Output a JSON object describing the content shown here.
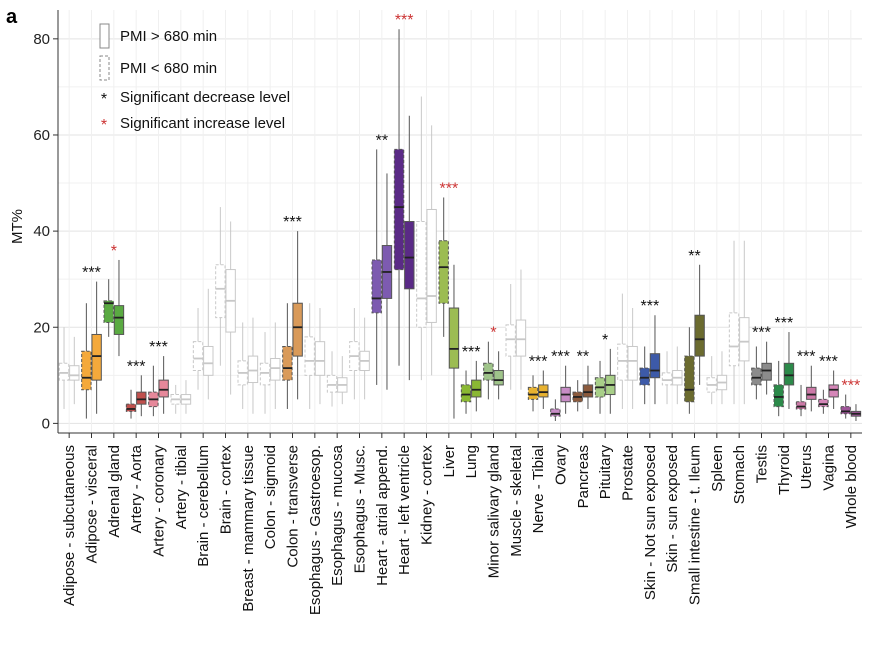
{
  "panel_label": "a",
  "chart_data": {
    "type": "box",
    "ylabel": "MT%",
    "ylim": [
      -2,
      86
    ],
    "yticks": [
      0,
      20,
      40,
      60,
      80
    ],
    "grid": true,
    "legend_position": "top-left",
    "legend": [
      {
        "label": "PMI > 680 min",
        "style": "solid"
      },
      {
        "label": "PMI < 680 min",
        "style": "dashed"
      },
      {
        "label": "Significant decrease level",
        "marker": "*",
        "color": "#111111"
      },
      {
        "label": "Significant increase level",
        "marker": "*",
        "color": "#cc3333"
      }
    ],
    "categories": [
      {
        "name": "Adipose - subcutaneous",
        "color": null,
        "sig": "",
        "sig_color": "",
        "long": {
          "q1": 9,
          "med": 10,
          "q3": 12,
          "lo": 4,
          "hi": 18
        },
        "short": {
          "q1": 9,
          "med": 10.5,
          "q3": 12.5,
          "lo": 3,
          "hi": 20
        }
      },
      {
        "name": "Adipose - visceral",
        "color": "#f4a93b",
        "sig": "***",
        "sig_color": "#111111",
        "long": {
          "q1": 9,
          "med": 14,
          "q3": 18.5,
          "lo": 2,
          "hi": 29.5
        },
        "short": {
          "q1": 7,
          "med": 9.5,
          "q3": 15,
          "lo": 1,
          "hi": 25
        }
      },
      {
        "name": "Adrenal gland",
        "color": "#5aaa42",
        "sig": "*",
        "sig_color": "#cc3333",
        "long": {
          "q1": 18.5,
          "med": 22,
          "q3": 24.5,
          "lo": 14,
          "hi": 34
        },
        "short": {
          "q1": 21,
          "med": 25,
          "q3": 25.5,
          "lo": 18,
          "hi": 30
        }
      },
      {
        "name": "Artery - Aorta",
        "color": "#c0504d",
        "sig": "***",
        "sig_color": "#111111",
        "long": {
          "q1": 4,
          "med": 5,
          "q3": 6.5,
          "lo": 1.5,
          "hi": 10
        },
        "short": {
          "q1": 2.5,
          "med": 3,
          "q3": 4,
          "lo": 1,
          "hi": 7
        }
      },
      {
        "name": "Artery - coronary",
        "color": "#e6889a",
        "sig": "***",
        "sig_color": "#111111",
        "long": {
          "q1": 5.5,
          "med": 7,
          "q3": 9,
          "lo": 2,
          "hi": 14
        },
        "short": {
          "q1": 3.5,
          "med": 5,
          "q3": 6.5,
          "lo": 1.5,
          "hi": 12
        }
      },
      {
        "name": "Artery - tibial",
        "color": null,
        "sig": "",
        "sig_color": "",
        "long": {
          "q1": 4,
          "med": 5,
          "q3": 6,
          "lo": 2,
          "hi": 9
        },
        "short": {
          "q1": 4,
          "med": 5,
          "q3": 6,
          "lo": 2,
          "hi": 8
        }
      },
      {
        "name": "Brain - cerebellum",
        "color": null,
        "sig": "",
        "sig_color": "",
        "long": {
          "q1": 10,
          "med": 12.5,
          "q3": 16,
          "lo": 5,
          "hi": 28
        },
        "short": {
          "q1": 11,
          "med": 13.5,
          "q3": 17,
          "lo": 7,
          "hi": 24
        }
      },
      {
        "name": "Brain - cortex",
        "color": null,
        "sig": "",
        "sig_color": "",
        "long": {
          "q1": 19,
          "med": 25.5,
          "q3": 32,
          "lo": 6,
          "hi": 42
        },
        "short": {
          "q1": 22,
          "med": 28,
          "q3": 33,
          "lo": 12,
          "hi": 45
        }
      },
      {
        "name": "Breast - mammary tissue",
        "color": null,
        "sig": "",
        "sig_color": "",
        "long": {
          "q1": 8.5,
          "med": 11,
          "q3": 14,
          "lo": 2,
          "hi": 22
        },
        "short": {
          "q1": 8,
          "med": 10.5,
          "q3": 13,
          "lo": 3,
          "hi": 21
        }
      },
      {
        "name": "Colon - sigmoid",
        "color": null,
        "sig": "",
        "sig_color": "",
        "long": {
          "q1": 9,
          "med": 11.5,
          "q3": 13.5,
          "lo": 3,
          "hi": 21
        },
        "short": {
          "q1": 8,
          "med": 10.5,
          "q3": 12.5,
          "lo": 2,
          "hi": 19
        }
      },
      {
        "name": "Colon - transverse",
        "color": "#d99a59",
        "sig": "***",
        "sig_color": "#111111",
        "long": {
          "q1": 14,
          "med": 20,
          "q3": 25,
          "lo": 5,
          "hi": 40
        },
        "short": {
          "q1": 9,
          "med": 11.5,
          "q3": 16,
          "lo": 3,
          "hi": 25
        }
      },
      {
        "name": "Esophagus - Gastroesop.",
        "color": null,
        "sig": "",
        "sig_color": "",
        "long": {
          "q1": 10,
          "med": 13,
          "q3": 17,
          "lo": 4,
          "hi": 24
        },
        "short": {
          "q1": 10,
          "med": 13,
          "q3": 18,
          "lo": 3,
          "hi": 25
        }
      },
      {
        "name": "Esophagus - mucosa",
        "color": null,
        "sig": "",
        "sig_color": "",
        "long": {
          "q1": 6.5,
          "med": 8,
          "q3": 9.5,
          "lo": 4,
          "hi": 14
        },
        "short": {
          "q1": 6.5,
          "med": 8,
          "q3": 10,
          "lo": 3.5,
          "hi": 15
        }
      },
      {
        "name": "Esophagus - Musc.",
        "color": null,
        "sig": "",
        "sig_color": "",
        "long": {
          "q1": 11,
          "med": 13,
          "q3": 15,
          "lo": 5,
          "hi": 22
        },
        "short": {
          "q1": 11,
          "med": 14,
          "q3": 17,
          "lo": 5,
          "hi": 24
        }
      },
      {
        "name": "Heart - atrial append.",
        "color": "#7d5bb0",
        "sig": "**",
        "sig_color": "#111111",
        "long": {
          "q1": 26,
          "med": 31.5,
          "q3": 37,
          "lo": 7,
          "hi": 52
        },
        "short": {
          "q1": 23,
          "med": 26,
          "q3": 34,
          "lo": 8,
          "hi": 57
        }
      },
      {
        "name": "Heart - left ventricle",
        "color": "#5a2a86",
        "sig": "***",
        "sig_color": "#cc3333",
        "long": {
          "q1": 28,
          "med": 34.5,
          "q3": 42,
          "lo": 9,
          "hi": 64
        },
        "short": {
          "q1": 32,
          "med": 45,
          "q3": 57,
          "lo": 12,
          "hi": 82
        }
      },
      {
        "name": "Kidney - cortex",
        "color": null,
        "sig": "",
        "sig_color": "",
        "long": {
          "q1": 21,
          "med": 26.5,
          "q3": 44.5,
          "lo": 10,
          "hi": 62
        },
        "short": {
          "q1": 20,
          "med": 26,
          "q3": 42,
          "lo": 9,
          "hi": 68
        }
      },
      {
        "name": "Liver",
        "color": "#9cbc52",
        "sig": "***",
        "sig_color": "#cc3333",
        "long": {
          "q1": 11.5,
          "med": 15.5,
          "q3": 24,
          "lo": 1,
          "hi": 33
        },
        "short": {
          "q1": 25,
          "med": 32.5,
          "q3": 38,
          "lo": 18,
          "hi": 47
        }
      },
      {
        "name": "Lung",
        "color": "#8ab833",
        "sig": "***",
        "sig_color": "#111111",
        "long": {
          "q1": 5.5,
          "med": 7,
          "q3": 9,
          "lo": 2.5,
          "hi": 13
        },
        "short": {
          "q1": 4.5,
          "med": 6,
          "q3": 8,
          "lo": 2,
          "hi": 11
        }
      },
      {
        "name": "Minor salivary gland",
        "color": "#9fc48a",
        "sig": "*",
        "sig_color": "#cc3333",
        "long": {
          "q1": 8,
          "med": 9,
          "q3": 11,
          "lo": 5,
          "hi": 15
        },
        "short": {
          "q1": 9,
          "med": 10.5,
          "q3": 12.5,
          "lo": 5,
          "hi": 17
        }
      },
      {
        "name": "Muscle - skeletal",
        "color": null,
        "sig": "",
        "sig_color": "",
        "long": {
          "q1": 14,
          "med": 17.5,
          "q3": 21.5,
          "lo": 7,
          "hi": 32
        },
        "short": {
          "q1": 14,
          "med": 17.5,
          "q3": 20.5,
          "lo": 7,
          "hi": 29
        }
      },
      {
        "name": "Nerve - Tibial",
        "color": "#e8b230",
        "sig": "***",
        "sig_color": "#111111",
        "long": {
          "q1": 5.5,
          "med": 6.5,
          "q3": 8,
          "lo": 3,
          "hi": 11
        },
        "short": {
          "q1": 5,
          "med": 6,
          "q3": 7.5,
          "lo": 2.5,
          "hi": 10
        }
      },
      {
        "name": "Ovary",
        "color": "#c88cc6",
        "sig": "***",
        "sig_color": "#111111",
        "long": {
          "q1": 4.5,
          "med": 6,
          "q3": 7.5,
          "lo": 2,
          "hi": 12
        },
        "short": {
          "q1": 1.5,
          "med": 2,
          "q3": 3,
          "lo": 0.5,
          "hi": 5
        }
      },
      {
        "name": "Pancreas",
        "color": "#8c5a3c",
        "sig": "**",
        "sig_color": "#111111",
        "long": {
          "q1": 5.5,
          "med": 6.5,
          "q3": 8,
          "lo": 3,
          "hi": 12
        },
        "short": {
          "q1": 4.5,
          "med": 5.5,
          "q3": 6.5,
          "lo": 2.5,
          "hi": 9
        }
      },
      {
        "name": "Pituitary",
        "color": "#a8cf88",
        "sig": "*",
        "sig_color": "#111111",
        "long": {
          "q1": 6,
          "med": 8,
          "q3": 10,
          "lo": 2,
          "hi": 15.5
        },
        "short": {
          "q1": 5.5,
          "med": 7.5,
          "q3": 9.5,
          "lo": 2,
          "hi": 13
        }
      },
      {
        "name": "Prostate",
        "color": null,
        "sig": "",
        "sig_color": "",
        "long": {
          "q1": 9,
          "med": 13,
          "q3": 16,
          "lo": 3,
          "hi": 24
        },
        "short": {
          "q1": 9,
          "med": 13,
          "q3": 16.5,
          "lo": 3,
          "hi": 27
        }
      },
      {
        "name": "Skin - Not sun exposed",
        "color": "#3d5aa8",
        "sig": "***",
        "sig_color": "#111111",
        "long": {
          "q1": 9.5,
          "med": 11,
          "q3": 14.5,
          "lo": 4,
          "hi": 22.5
        },
        "short": {
          "q1": 8,
          "med": 9.5,
          "q3": 11.5,
          "lo": 4,
          "hi": 16
        }
      },
      {
        "name": "Skin - sun exposed",
        "color": null,
        "sig": "",
        "sig_color": "",
        "long": {
          "q1": 8,
          "med": 9.5,
          "q3": 11,
          "lo": 4,
          "hi": 16
        },
        "short": {
          "q1": 8,
          "med": 9,
          "q3": 10.5,
          "lo": 4,
          "hi": 15
        }
      },
      {
        "name": "Small intestine - t. Ileum",
        "color": "#6b6b2f",
        "sig": "**",
        "sig_color": "#111111",
        "long": {
          "q1": 14,
          "med": 17.5,
          "q3": 22.5,
          "lo": 8,
          "hi": 33
        },
        "short": {
          "q1": 4.5,
          "med": 7,
          "q3": 14,
          "lo": 2,
          "hi": 20
        }
      },
      {
        "name": "Spleen",
        "color": null,
        "sig": "",
        "sig_color": "",
        "long": {
          "q1": 7,
          "med": 8.5,
          "q3": 10,
          "lo": 4,
          "hi": 15
        },
        "short": {
          "q1": 6.5,
          "med": 8,
          "q3": 9.5,
          "lo": 4,
          "hi": 14
        }
      },
      {
        "name": "Stomach",
        "color": null,
        "sig": "",
        "sig_color": "",
        "long": {
          "q1": 13,
          "med": 17,
          "q3": 22,
          "lo": 4,
          "hi": 38
        },
        "short": {
          "q1": 12,
          "med": 16,
          "q3": 23,
          "lo": 4,
          "hi": 38
        }
      },
      {
        "name": "Testis",
        "color": "#8c8c8c",
        "sig": "***",
        "sig_color": "#111111",
        "long": {
          "q1": 9,
          "med": 11,
          "q3": 12.5,
          "lo": 6,
          "hi": 17
        },
        "short": {
          "q1": 8,
          "med": 9.5,
          "q3": 11.5,
          "lo": 5,
          "hi": 16
        }
      },
      {
        "name": "Thyroid",
        "color": "#2c8a4a",
        "sig": "***",
        "sig_color": "#111111",
        "long": {
          "q1": 8,
          "med": 10,
          "q3": 12.5,
          "lo": 3,
          "hi": 19
        },
        "short": {
          "q1": 3.5,
          "med": 5.5,
          "q3": 8,
          "lo": 1.5,
          "hi": 13
        }
      },
      {
        "name": "Uterus",
        "color": "#cc79a7",
        "sig": "***",
        "sig_color": "#111111",
        "long": {
          "q1": 5,
          "med": 6,
          "q3": 7.5,
          "lo": 2.5,
          "hi": 12
        },
        "short": {
          "q1": 3,
          "med": 3.5,
          "q3": 4.5,
          "lo": 1.5,
          "hi": 8
        }
      },
      {
        "name": "Vagina",
        "color": "#d586b8",
        "sig": "***",
        "sig_color": "#111111",
        "long": {
          "q1": 5.5,
          "med": 7,
          "q3": 8,
          "lo": 3,
          "hi": 11
        },
        "short": {
          "q1": 3.5,
          "med": 4,
          "q3": 5,
          "lo": 2,
          "hi": 7
        }
      },
      {
        "name": "Whole blood",
        "color": "#a0559a",
        "sig": "***",
        "sig_color": "#cc3333",
        "long": {
          "q1": 1.5,
          "med": 2,
          "q3": 2.5,
          "lo": 0.5,
          "hi": 4
        },
        "short": {
          "q1": 2,
          "med": 2.5,
          "q3": 3.5,
          "lo": 1,
          "hi": 6
        }
      }
    ]
  }
}
